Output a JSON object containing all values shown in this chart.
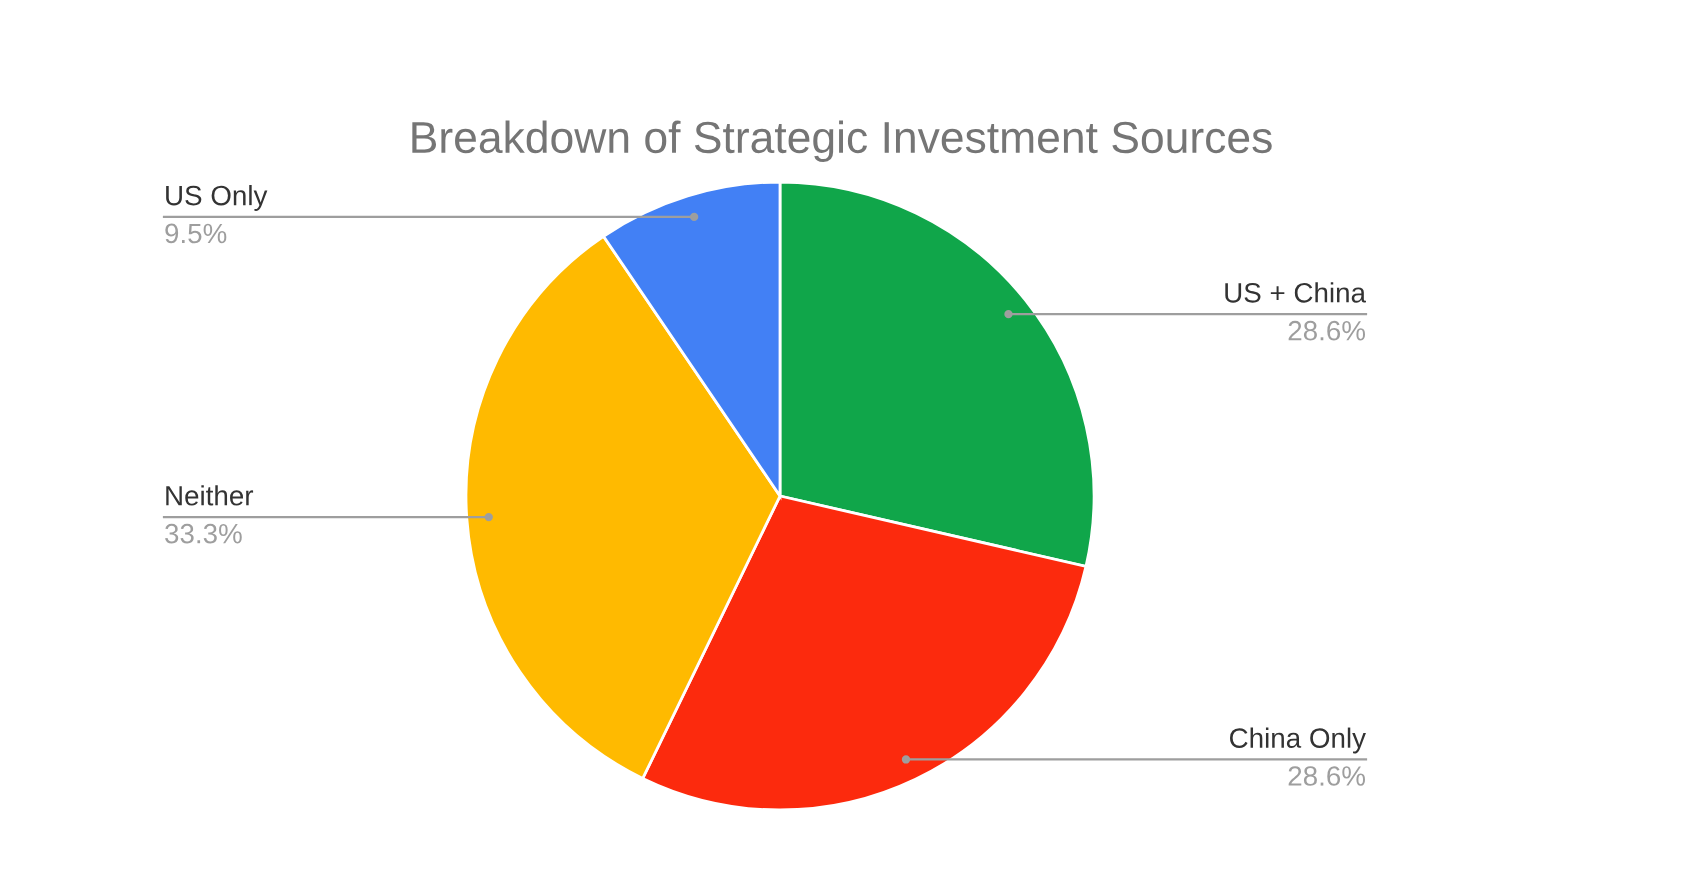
{
  "chart_data": {
    "type": "pie",
    "title": "Breakdown of Strategic Investment Sources",
    "categories": [
      "US + China",
      "China Only",
      "Neither",
      "US Only"
    ],
    "values": [
      28.6,
      28.6,
      33.3,
      9.5
    ],
    "value_labels": [
      "28.6%",
      "28.6%",
      "33.3%",
      "9.5%"
    ],
    "colors": [
      "#10a64a",
      "#fc2a0d",
      "#ffba00",
      "#4280f5"
    ],
    "legend": false
  }
}
